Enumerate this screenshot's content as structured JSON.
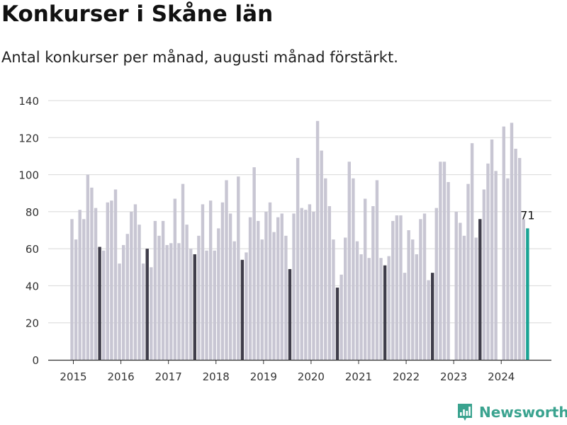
{
  "title": "Konkurser i Skåne län",
  "subtitle": "Antal konkurser per månad, augusti månad förstärkt.",
  "brand": {
    "name": "Newsworthy",
    "icon": "newsworthy-logo-icon"
  },
  "colors": {
    "bar": "#c8c6d3",
    "highlight": "#3f3d4a",
    "latest": "#19a394",
    "gridline": "#d8d8d8",
    "axis": "#333333",
    "brand": "#3aa38f"
  },
  "chart_data": {
    "type": "bar",
    "title": "Konkurser i Skåne län",
    "subtitle": "Antal konkurser per månad, augusti månad förstärkt.",
    "xlabel": "",
    "ylabel": "",
    "ylim": [
      0,
      140
    ],
    "yticks": [
      0,
      20,
      40,
      60,
      80,
      100,
      120,
      140
    ],
    "xticks": [
      "2015",
      "2016",
      "2017",
      "2018",
      "2019",
      "2020",
      "2021",
      "2022",
      "2023",
      "2024"
    ],
    "grid": "horizontal",
    "highlight_month": "augusti",
    "data_label": "71",
    "years": [
      {
        "year": "2015",
        "values": [
          76,
          65,
          81,
          76,
          100,
          93,
          82,
          61,
          59,
          85,
          86,
          92
        ]
      },
      {
        "year": "2016",
        "values": [
          52,
          62,
          68,
          80,
          84,
          73,
          52,
          60,
          50,
          75,
          67,
          75
        ]
      },
      {
        "year": "2017",
        "values": [
          62,
          63,
          87,
          63,
          95,
          73,
          60,
          57,
          67,
          84,
          59,
          86
        ]
      },
      {
        "year": "2018",
        "values": [
          59,
          71,
          85,
          97,
          79,
          64,
          99,
          54,
          58,
          77,
          104,
          75
        ]
      },
      {
        "year": "2019",
        "values": [
          65,
          80,
          85,
          69,
          77,
          79,
          67,
          49,
          79,
          109,
          82,
          81
        ]
      },
      {
        "year": "2020",
        "values": [
          84,
          80,
          129,
          113,
          98,
          83,
          65,
          39,
          46,
          66,
          107,
          98
        ]
      },
      {
        "year": "2021",
        "values": [
          64,
          57,
          87,
          55,
          83,
          97,
          55,
          51,
          56,
          75,
          78,
          78
        ]
      },
      {
        "year": "2022",
        "values": [
          47,
          70,
          65,
          57,
          76,
          79,
          43,
          47,
          82,
          107,
          107,
          96
        ]
      },
      {
        "year": "2023",
        "values": [
          null,
          80,
          74,
          67,
          95,
          117,
          66,
          76,
          92,
          106,
          119,
          102
        ]
      },
      {
        "year": "2024",
        "values": [
          null,
          126,
          98,
          128,
          114,
          109,
          76,
          71
        ]
      }
    ]
  }
}
